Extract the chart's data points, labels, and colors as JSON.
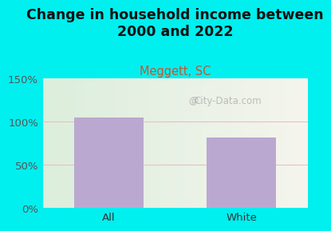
{
  "title": "Change in household income between\n2000 and 2022",
  "subtitle": "Meggett, SC",
  "categories": [
    "All",
    "White"
  ],
  "values": [
    105,
    82
  ],
  "bar_color": "#bba8d0",
  "title_fontsize": 12.5,
  "subtitle_fontsize": 10.5,
  "subtitle_color": "#b85c38",
  "tick_label_fontsize": 9.5,
  "ylim": [
    0,
    150
  ],
  "yticks": [
    0,
    50,
    100,
    150
  ],
  "ytick_labels": [
    "0%",
    "50%",
    "100%",
    "150%"
  ],
  "bg_outer": "#00efef",
  "bg_plot_top_left": "#e8f5e9",
  "bg_plot_top_right": "#f5f5ee",
  "bg_plot_bottom_left": "#dceede",
  "bg_plot_bottom_right": "#f0f0ea",
  "grid_color": "#e8c0c0",
  "watermark": "City-Data.com"
}
